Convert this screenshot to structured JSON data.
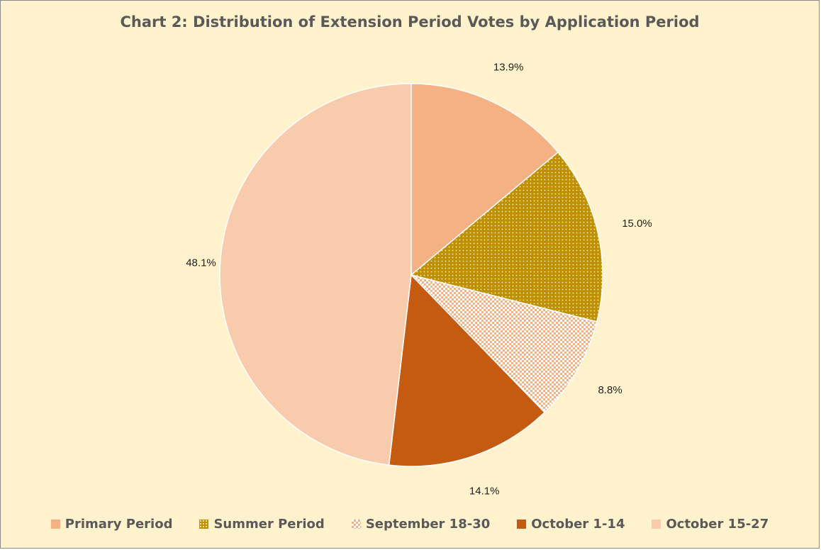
{
  "chart_data": {
    "type": "pie",
    "title": "Chart 2: Distribution of Extension Period Votes by Application Period",
    "categories": [
      "Primary Period",
      "Summer Period",
      "September 18-30",
      "October 1-14",
      "October 15-27"
    ],
    "values": [
      13.9,
      15.0,
      8.8,
      14.1,
      48.1
    ],
    "data_labels": [
      "13.9%",
      "15.0%",
      "8.8%",
      "14.1%",
      "48.1%"
    ],
    "colors": [
      "#f4b183",
      "#bf9000",
      "#f8cbad",
      "#c55a11",
      "#f8cbad"
    ],
    "patterns": [
      "solid",
      "dotted",
      "checker",
      "solid",
      "solid"
    ],
    "legend_position": "bottom",
    "start_angle_deg": 0,
    "direction": "clockwise"
  }
}
